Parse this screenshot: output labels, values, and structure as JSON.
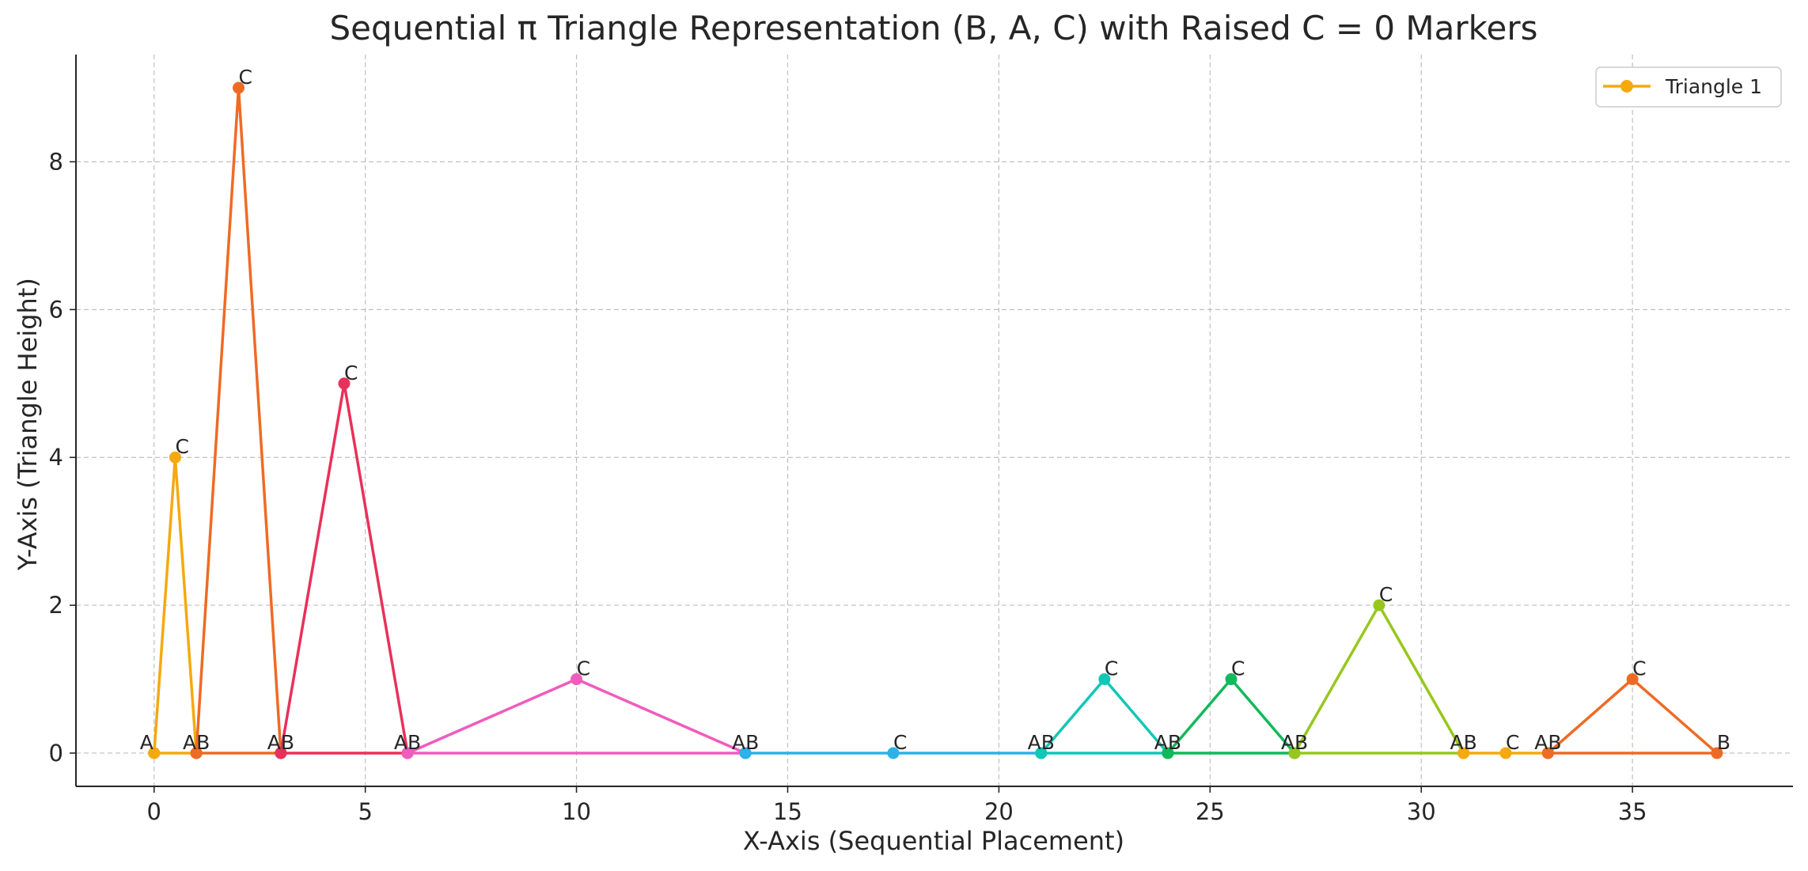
{
  "chart_data": {
    "type": "line",
    "title": "Sequential π Triangle Representation (B, A, C) with Raised C = 0 Markers",
    "xlabel": "X-Axis (Sequential Placement)",
    "ylabel": "Y-Axis (Triangle Height)",
    "xlim": [
      -1.85,
      38.8
    ],
    "ylim": [
      -0.45,
      9.45
    ],
    "xticks": [
      0,
      5,
      10,
      15,
      20,
      25,
      30,
      35
    ],
    "yticks": [
      0,
      2,
      4,
      6,
      8
    ],
    "grid": true,
    "legend": {
      "placement": "top-right",
      "entries": [
        {
          "label": "Triangle 1",
          "color": "#f5a90f"
        }
      ]
    },
    "series": [
      {
        "color": "#f5a90f",
        "points": [
          {
            "x": 0,
            "y": 0,
            "label": "A"
          },
          {
            "x": 0.5,
            "y": 4,
            "label": "C"
          },
          {
            "x": 1,
            "y": 0,
            "label": "AB"
          },
          {
            "x": 0,
            "y": 0,
            "label": ""
          }
        ]
      },
      {
        "color": "#ee6b25",
        "points": [
          {
            "x": 1,
            "y": 0,
            "label": ""
          },
          {
            "x": 2,
            "y": 9,
            "label": "C"
          },
          {
            "x": 3,
            "y": 0,
            "label": "AB"
          },
          {
            "x": 1,
            "y": 0,
            "label": ""
          }
        ]
      },
      {
        "color": "#e8315a",
        "points": [
          {
            "x": 3,
            "y": 0,
            "label": ""
          },
          {
            "x": 4.5,
            "y": 5,
            "label": "C"
          },
          {
            "x": 6,
            "y": 0,
            "label": "AB"
          },
          {
            "x": 3,
            "y": 0,
            "label": ""
          }
        ]
      },
      {
        "color": "#f05bbd",
        "points": [
          {
            "x": 6,
            "y": 0,
            "label": ""
          },
          {
            "x": 10,
            "y": 1,
            "label": "C"
          },
          {
            "x": 14,
            "y": 0,
            "label": "AB"
          },
          {
            "x": 6,
            "y": 0,
            "label": ""
          }
        ]
      },
      {
        "color": "#2cb2e8",
        "points": [
          {
            "x": 14,
            "y": 0,
            "label": ""
          },
          {
            "x": 17.5,
            "y": 0,
            "label": "C"
          },
          {
            "x": 21,
            "y": 0,
            "label": "AB"
          },
          {
            "x": 14,
            "y": 0,
            "label": ""
          }
        ]
      },
      {
        "color": "#12c7b5",
        "points": [
          {
            "x": 21,
            "y": 0,
            "label": ""
          },
          {
            "x": 22.5,
            "y": 1,
            "label": "C"
          },
          {
            "x": 24,
            "y": 0,
            "label": "AB"
          },
          {
            "x": 21,
            "y": 0,
            "label": ""
          }
        ]
      },
      {
        "color": "#10b95a",
        "points": [
          {
            "x": 24,
            "y": 0,
            "label": ""
          },
          {
            "x": 25.5,
            "y": 1,
            "label": "C"
          },
          {
            "x": 27,
            "y": 0,
            "label": "AB"
          },
          {
            "x": 24,
            "y": 0,
            "label": ""
          }
        ]
      },
      {
        "color": "#97c71f",
        "points": [
          {
            "x": 27,
            "y": 0,
            "label": ""
          },
          {
            "x": 29,
            "y": 2,
            "label": "C"
          },
          {
            "x": 31,
            "y": 0,
            "label": "AB"
          },
          {
            "x": 27,
            "y": 0,
            "label": ""
          }
        ]
      },
      {
        "color": "#f5a90f",
        "points": [
          {
            "x": 31,
            "y": 0,
            "label": ""
          },
          {
            "x": 32,
            "y": 0,
            "label": "C"
          },
          {
            "x": 33,
            "y": 0,
            "label": "AB"
          },
          {
            "x": 31,
            "y": 0,
            "label": ""
          }
        ]
      },
      {
        "color": "#ee6b25",
        "points": [
          {
            "x": 33,
            "y": 0,
            "label": ""
          },
          {
            "x": 35,
            "y": 1,
            "label": "C"
          },
          {
            "x": 37,
            "y": 0,
            "label": "B"
          },
          {
            "x": 33,
            "y": 0,
            "label": ""
          }
        ]
      }
    ]
  }
}
